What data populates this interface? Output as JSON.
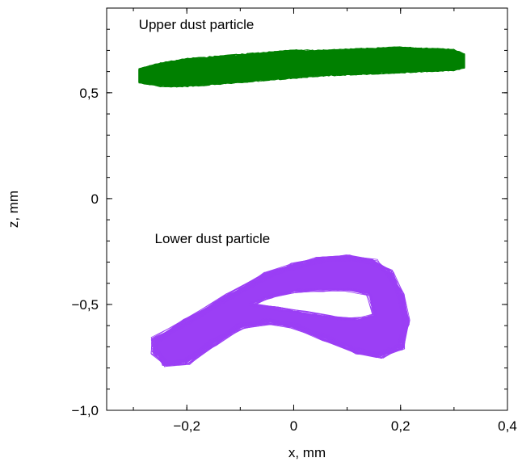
{
  "chart_data": {
    "type": "line",
    "title": "",
    "xlabel": "x, mm",
    "ylabel": "z, mm",
    "xlim": [
      -0.35,
      0.4
    ],
    "ylim": [
      -1.0,
      0.9
    ],
    "x_ticks": [
      {
        "value": -0.2,
        "label": "−0,2"
      },
      {
        "value": 0.0,
        "label": "0"
      },
      {
        "value": 0.2,
        "label": "0,2"
      },
      {
        "value": 0.4,
        "label": "0,4"
      }
    ],
    "y_ticks": [
      {
        "value": -1.0,
        "label": "−1,0"
      },
      {
        "value": -0.5,
        "label": "−0,5"
      },
      {
        "value": 0.0,
        "label": "0"
      },
      {
        "value": 0.5,
        "label": "0,5"
      }
    ],
    "grid": false,
    "annotations": [
      {
        "text": "Upper dust particle",
        "x": -0.29,
        "y": 0.8
      },
      {
        "text": "Lower dust particle",
        "x": -0.26,
        "y": -0.21
      }
    ],
    "series": [
      {
        "color": "#008000",
        "trajectory": {
          "kind": "band",
          "x": [
            -0.29,
            -0.25,
            -0.2,
            -0.15,
            -0.1,
            -0.05,
            0.0,
            0.05,
            0.1,
            0.15,
            0.2,
            0.25,
            0.3,
            0.32
          ],
          "z_center": [
            0.58,
            0.585,
            0.595,
            0.605,
            0.615,
            0.625,
            0.635,
            0.64,
            0.645,
            0.65,
            0.655,
            0.655,
            0.655,
            0.65
          ],
          "z_halfwidth": [
            0.03,
            0.05,
            0.06,
            0.06,
            0.06,
            0.06,
            0.06,
            0.055,
            0.055,
            0.055,
            0.055,
            0.05,
            0.045,
            0.03
          ]
        }
      },
      {
        "color": "#9b3ff5",
        "trajectory": {
          "kind": "loop",
          "outer_x": [
            -0.26,
            -0.2,
            -0.12,
            -0.05,
            0.0,
            0.05,
            0.1,
            0.15,
            0.18,
            0.2,
            0.21,
            0.2,
            0.16,
            0.12,
            0.06,
            0.0,
            -0.05,
            -0.1,
            -0.15,
            -0.2,
            -0.24,
            -0.26
          ],
          "outer_z": [
            -0.67,
            -0.58,
            -0.46,
            -0.36,
            -0.32,
            -0.29,
            -0.28,
            -0.3,
            -0.35,
            -0.45,
            -0.58,
            -0.7,
            -0.74,
            -0.72,
            -0.66,
            -0.6,
            -0.58,
            -0.6,
            -0.68,
            -0.77,
            -0.78,
            -0.72
          ],
          "inner_x": [
            -0.08,
            -0.04,
            0.0,
            0.05,
            0.1,
            0.14,
            0.15,
            0.12,
            0.07,
            0.02,
            -0.03,
            -0.08
          ],
          "inner_z": [
            -0.5,
            -0.46,
            -0.44,
            -0.43,
            -0.43,
            -0.45,
            -0.55,
            -0.57,
            -0.56,
            -0.54,
            -0.52,
            -0.5
          ]
        }
      }
    ]
  }
}
